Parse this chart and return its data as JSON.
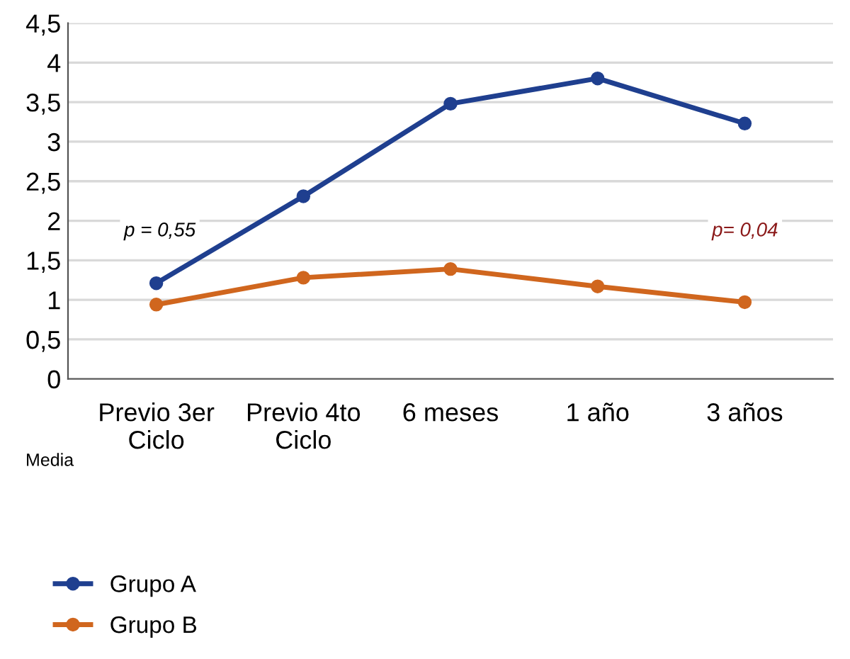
{
  "chart_data": {
    "type": "line",
    "categories": [
      "Previo 3er\nCiclo",
      "Previo 4to\nCiclo",
      "6 meses",
      "1 año",
      "3 años"
    ],
    "series": [
      {
        "name": "Grupo A",
        "color": "#1f3f8f",
        "values": [
          1.21,
          2.31,
          3.48,
          3.8,
          3.23
        ]
      },
      {
        "name": "Grupo B",
        "color": "#d0661e",
        "values": [
          0.94,
          1.28,
          1.39,
          1.17,
          0.97
        ]
      }
    ],
    "ylim": [
      0,
      4.5
    ],
    "yticks": [
      0,
      {
        "value": 0.5,
        "label": "0,5"
      },
      1,
      {
        "value": 1.5,
        "label": "1,5"
      },
      2,
      {
        "value": 2.5,
        "label": "2,5"
      },
      3,
      {
        "value": 3.5,
        "label": "3,5"
      },
      4,
      {
        "value": 4.5,
        "label": "4,5"
      }
    ],
    "annotations": [
      "p = 0,55",
      "p= 0,04",
      "Media"
    ],
    "grid": "y",
    "legend": "bottom left",
    "marker": "circle",
    "line_style": "solid"
  }
}
